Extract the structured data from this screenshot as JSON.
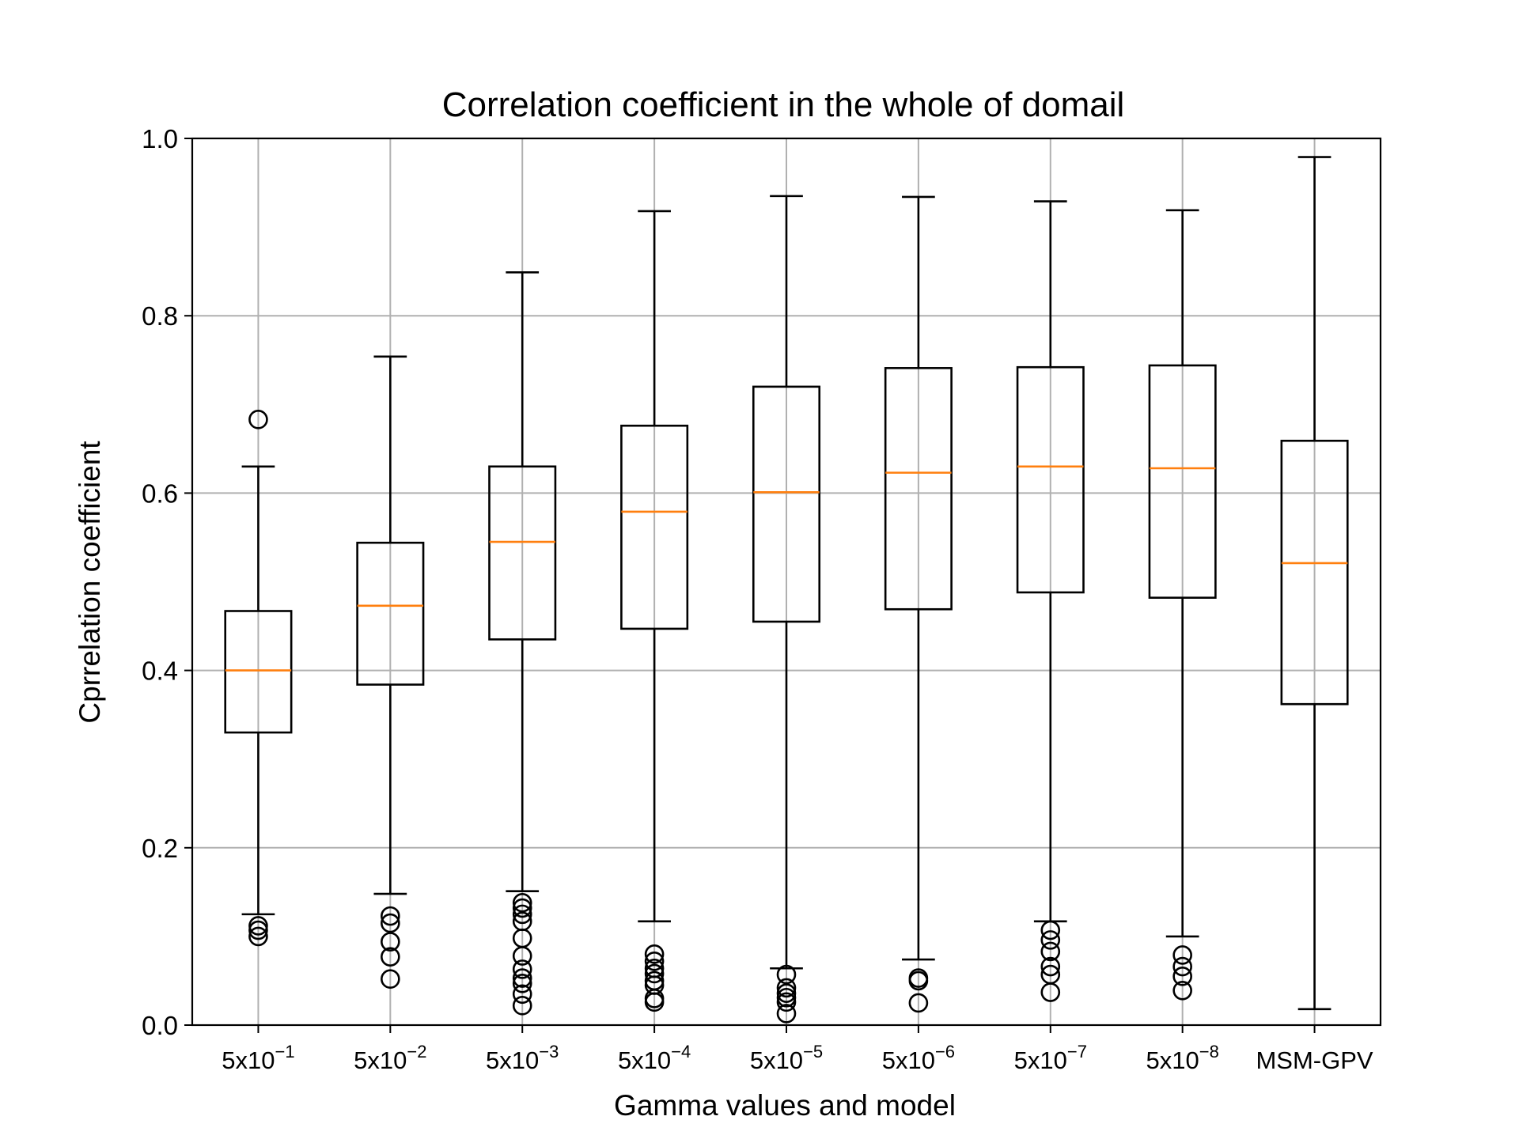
{
  "chart_data": {
    "type": "box",
    "title": "Correlation coefficient in the whole of domail",
    "xlabel": "Gamma values and model",
    "ylabel": "Cprrelation coefficient",
    "ylim": [
      0.0,
      1.0
    ],
    "yticks": [
      "0.0",
      "0.2",
      "0.4",
      "0.6",
      "0.8",
      "1.0"
    ],
    "grid": true,
    "colors": {
      "box": "#000000",
      "median": "#ff7f0e",
      "grid": "#b0b0b0"
    },
    "categories": [
      {
        "base": "5x10",
        "exp": "−1"
      },
      {
        "base": "5x10",
        "exp": "−2"
      },
      {
        "base": "5x10",
        "exp": "−3"
      },
      {
        "base": "5x10",
        "exp": "−4"
      },
      {
        "base": "5x10",
        "exp": "−5"
      },
      {
        "base": "5x10",
        "exp": "−6"
      },
      {
        "base": "5x10",
        "exp": "−7"
      },
      {
        "base": "5x10",
        "exp": "−8"
      },
      {
        "base": "MSM-GPV",
        "exp": ""
      }
    ],
    "boxes": [
      {
        "whislo": 0.125,
        "q1": 0.33,
        "med": 0.4,
        "q3": 0.467,
        "whishi": 0.63,
        "fliers": [
          0.683,
          0.112,
          0.107,
          0.1
        ]
      },
      {
        "whislo": 0.148,
        "q1": 0.384,
        "med": 0.473,
        "q3": 0.544,
        "whishi": 0.754,
        "fliers": [
          0.123,
          0.115,
          0.094,
          0.077,
          0.052
        ]
      },
      {
        "whislo": 0.151,
        "q1": 0.435,
        "med": 0.545,
        "q3": 0.63,
        "whishi": 0.849,
        "fliers": [
          0.138,
          0.132,
          0.125,
          0.117,
          0.098,
          0.078,
          0.063,
          0.053,
          0.047,
          0.035,
          0.022
        ]
      },
      {
        "whislo": 0.117,
        "q1": 0.447,
        "med": 0.579,
        "q3": 0.676,
        "whishi": 0.918,
        "fliers": [
          0.08,
          0.072,
          0.064,
          0.058,
          0.05,
          0.045,
          0.03,
          0.026
        ]
      },
      {
        "whislo": 0.064,
        "q1": 0.455,
        "med": 0.601,
        "q3": 0.72,
        "whishi": 0.935,
        "fliers": [
          0.057,
          0.042,
          0.036,
          0.031,
          0.026,
          0.013
        ]
      },
      {
        "whislo": 0.074,
        "q1": 0.469,
        "med": 0.623,
        "q3": 0.741,
        "whishi": 0.934,
        "fliers": [
          0.053,
          0.05,
          0.025
        ]
      },
      {
        "whislo": 0.117,
        "q1": 0.488,
        "med": 0.63,
        "q3": 0.742,
        "whishi": 0.929,
        "fliers": [
          0.107,
          0.096,
          0.083,
          0.066,
          0.057,
          0.037
        ]
      },
      {
        "whislo": 0.1,
        "q1": 0.482,
        "med": 0.628,
        "q3": 0.744,
        "whishi": 0.919,
        "fliers": [
          0.079,
          0.066,
          0.055,
          0.039
        ]
      },
      {
        "whislo": 0.018,
        "q1": 0.362,
        "med": 0.521,
        "q3": 0.659,
        "whishi": 0.979,
        "fliers": []
      }
    ]
  }
}
